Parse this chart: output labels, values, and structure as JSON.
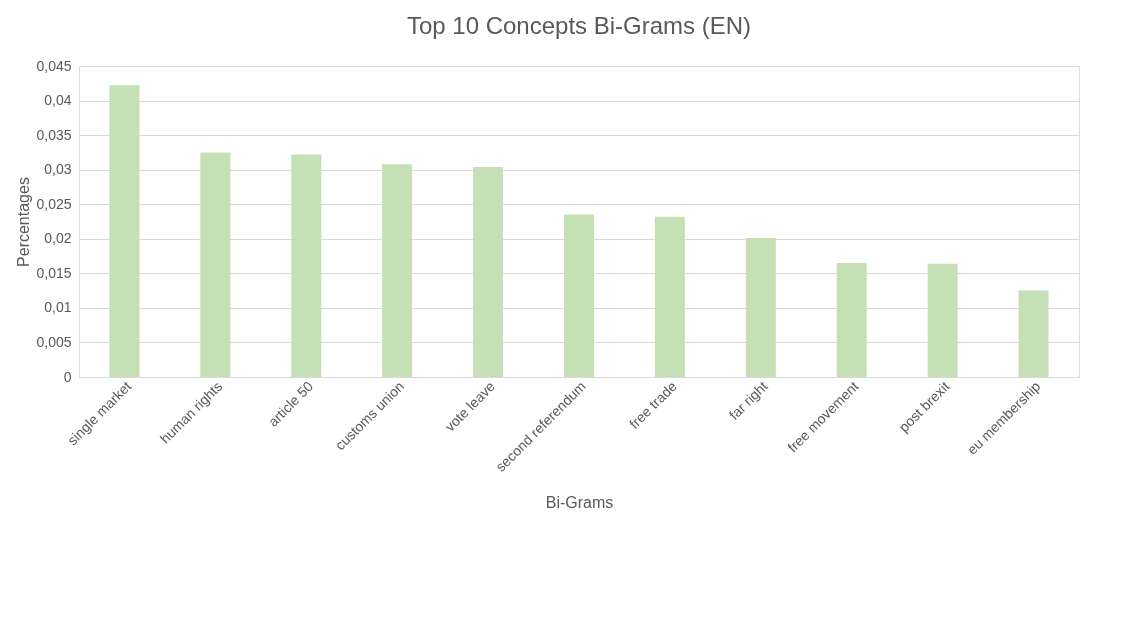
{
  "chart_data": {
    "type": "bar",
    "title": "Top 10 Concepts Bi-Grams (EN)",
    "xlabel": "Bi-Grams",
    "ylabel": "Percentages",
    "categories": [
      "single market",
      "human rights",
      "article 50",
      "customs union",
      "vote leave",
      "second referendum",
      "free trade",
      "far right",
      "free movement",
      "post brexit",
      "eu membership"
    ],
    "values": [
      0.0422,
      0.0325,
      0.0322,
      0.0308,
      0.0304,
      0.0235,
      0.0232,
      0.0201,
      0.0165,
      0.0164,
      0.0125
    ],
    "color": "#c5e0b4",
    "ylim": [
      0,
      0.045
    ],
    "yticks": [
      0,
      {
        "value": 0.005,
        "label": "0,005"
      },
      {
        "value": 0.01,
        "label": "0,01"
      },
      {
        "value": 0.015,
        "label": "0,015"
      },
      {
        "value": 0.02,
        "label": "0,02"
      },
      {
        "value": 0.025,
        "label": "0,025"
      },
      {
        "value": 0.03,
        "label": "0,03"
      },
      {
        "value": 0.035,
        "label": "0,035"
      },
      {
        "value": 0.04,
        "label": "0,04"
      },
      {
        "value": 0.045,
        "label": "0,045"
      }
    ],
    "grid": "y"
  }
}
